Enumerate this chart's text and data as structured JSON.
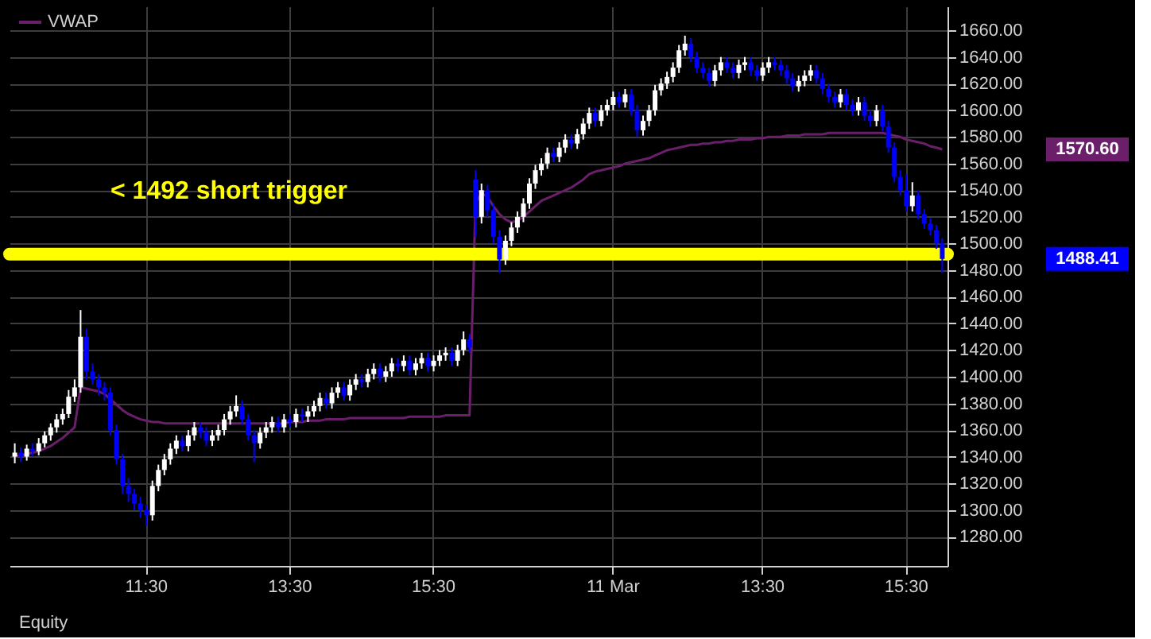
{
  "chart_data": {
    "type": "candlestick",
    "categories": [
      null,
      null,
      null,
      null,
      null,
      null,
      null,
      null,
      null,
      null,
      null,
      null,
      null,
      null,
      null,
      null,
      null,
      null,
      null,
      null,
      null,
      null,
      "11:30",
      null,
      null,
      null,
      null,
      null,
      null,
      null,
      null,
      null,
      null,
      null,
      null,
      null,
      null,
      null,
      null,
      null,
      null,
      null,
      null,
      null,
      null,
      null,
      "13:30",
      null,
      null,
      null,
      null,
      null,
      null,
      null,
      null,
      null,
      null,
      null,
      null,
      null,
      null,
      null,
      null,
      null,
      null,
      null,
      null,
      null,
      null,
      null,
      "15:30",
      null,
      null,
      null,
      null,
      null,
      null,
      null,
      null,
      null,
      null,
      null,
      null,
      null,
      null,
      null,
      null,
      null,
      null,
      null,
      null,
      null,
      null,
      null,
      null,
      null,
      null,
      null,
      null,
      null,
      "11 Mar",
      null,
      null,
      null,
      null,
      null,
      null,
      null,
      null,
      null,
      null,
      null,
      null,
      null,
      null,
      null,
      null,
      null,
      null,
      null,
      null,
      null,
      null,
      null,
      null,
      "13:30",
      null,
      null,
      null,
      null,
      null,
      null,
      null,
      null,
      null,
      null,
      null,
      null,
      null,
      null,
      null,
      null,
      null,
      null,
      null,
      null,
      null,
      null,
      null,
      "15:30",
      null,
      null,
      null,
      null,
      null,
      null
    ],
    "ohlc": [
      [
        1340,
        1350,
        1335,
        1343
      ],
      [
        1343,
        1347,
        1336,
        1340
      ],
      [
        1340,
        1349,
        1337,
        1346
      ],
      [
        1346,
        1350,
        1340,
        1344
      ],
      [
        1344,
        1354,
        1341,
        1350
      ],
      [
        1350,
        1359,
        1347,
        1356
      ],
      [
        1356,
        1365,
        1352,
        1362
      ],
      [
        1362,
        1372,
        1358,
        1368
      ],
      [
        1368,
        1376,
        1364,
        1372
      ],
      [
        1372,
        1390,
        1369,
        1385
      ],
      [
        1385,
        1398,
        1381,
        1392
      ],
      [
        1392,
        1450,
        1388,
        1430
      ],
      [
        1430,
        1436,
        1398,
        1404
      ],
      [
        1404,
        1410,
        1394,
        1398
      ],
      [
        1398,
        1402,
        1386,
        1392
      ],
      [
        1392,
        1396,
        1382,
        1388
      ],
      [
        1388,
        1392,
        1356,
        1360
      ],
      [
        1360,
        1364,
        1334,
        1338
      ],
      [
        1338,
        1342,
        1312,
        1318
      ],
      [
        1318,
        1324,
        1306,
        1312
      ],
      [
        1312,
        1316,
        1300,
        1305
      ],
      [
        1305,
        1310,
        1294,
        1300
      ],
      [
        1300,
        1304,
        1288,
        1296
      ],
      [
        1296,
        1322,
        1292,
        1318
      ],
      [
        1318,
        1334,
        1314,
        1330
      ],
      [
        1330,
        1342,
        1326,
        1338
      ],
      [
        1338,
        1350,
        1334,
        1346
      ],
      [
        1346,
        1356,
        1342,
        1352
      ],
      [
        1352,
        1356,
        1344,
        1348
      ],
      [
        1348,
        1360,
        1344,
        1356
      ],
      [
        1356,
        1366,
        1352,
        1362
      ],
      [
        1362,
        1366,
        1354,
        1358
      ],
      [
        1358,
        1362,
        1348,
        1352
      ],
      [
        1352,
        1360,
        1348,
        1356
      ],
      [
        1356,
        1364,
        1352,
        1360
      ],
      [
        1360,
        1372,
        1356,
        1368
      ],
      [
        1368,
        1378,
        1364,
        1374
      ],
      [
        1374,
        1386,
        1370,
        1378
      ],
      [
        1378,
        1382,
        1364,
        1368
      ],
      [
        1368,
        1372,
        1352,
        1356
      ],
      [
        1356,
        1360,
        1336,
        1350
      ],
      [
        1350,
        1362,
        1346,
        1358
      ],
      [
        1358,
        1366,
        1354,
        1362
      ],
      [
        1362,
        1370,
        1358,
        1366
      ],
      [
        1366,
        1370,
        1358,
        1362
      ],
      [
        1362,
        1372,
        1358,
        1368
      ],
      [
        1368,
        1372,
        1362,
        1366
      ],
      [
        1366,
        1376,
        1362,
        1372
      ],
      [
        1372,
        1376,
        1366,
        1370
      ],
      [
        1370,
        1378,
        1366,
        1374
      ],
      [
        1374,
        1382,
        1370,
        1378
      ],
      [
        1378,
        1388,
        1374,
        1384
      ],
      [
        1384,
        1388,
        1376,
        1380
      ],
      [
        1380,
        1392,
        1376,
        1388
      ],
      [
        1388,
        1396,
        1384,
        1392
      ],
      [
        1392,
        1396,
        1382,
        1386
      ],
      [
        1386,
        1398,
        1382,
        1394
      ],
      [
        1394,
        1402,
        1390,
        1398
      ],
      [
        1398,
        1402,
        1392,
        1396
      ],
      [
        1396,
        1406,
        1392,
        1402
      ],
      [
        1402,
        1410,
        1398,
        1406
      ],
      [
        1406,
        1410,
        1396,
        1400
      ],
      [
        1400,
        1408,
        1396,
        1404
      ],
      [
        1404,
        1414,
        1400,
        1410
      ],
      [
        1410,
        1414,
        1404,
        1408
      ],
      [
        1408,
        1416,
        1404,
        1412
      ],
      [
        1412,
        1416,
        1401,
        1405
      ],
      [
        1405,
        1414,
        1401,
        1410
      ],
      [
        1410,
        1418,
        1406,
        1414
      ],
      [
        1414,
        1418,
        1404,
        1408
      ],
      [
        1408,
        1416,
        1404,
        1412
      ],
      [
        1412,
        1420,
        1408,
        1416
      ],
      [
        1416,
        1422,
        1412,
        1418
      ],
      [
        1418,
        1422,
        1408,
        1412
      ],
      [
        1412,
        1424,
        1408,
        1420
      ],
      [
        1420,
        1434,
        1416,
        1428
      ],
      [
        1428,
        1432,
        1418,
        1422
      ],
      [
        1548,
        1555,
        1505,
        1520
      ],
      [
        1520,
        1545,
        1515,
        1540
      ],
      [
        1540,
        1544,
        1520,
        1525
      ],
      [
        1525,
        1530,
        1500,
        1505
      ],
      [
        1505,
        1510,
        1478,
        1488
      ],
      [
        1488,
        1506,
        1484,
        1502
      ],
      [
        1502,
        1516,
        1498,
        1512
      ],
      [
        1512,
        1524,
        1508,
        1520
      ],
      [
        1520,
        1534,
        1516,
        1530
      ],
      [
        1530,
        1549,
        1526,
        1545
      ],
      [
        1545,
        1559,
        1541,
        1555
      ],
      [
        1555,
        1564,
        1551,
        1560
      ],
      [
        1560,
        1572,
        1556,
        1568
      ],
      [
        1568,
        1572,
        1561,
        1565
      ],
      [
        1565,
        1576,
        1561,
        1572
      ],
      [
        1572,
        1582,
        1568,
        1578
      ],
      [
        1578,
        1582,
        1571,
        1575
      ],
      [
        1575,
        1586,
        1571,
        1582
      ],
      [
        1582,
        1594,
        1578,
        1590
      ],
      [
        1590,
        1602,
        1586,
        1598
      ],
      [
        1598,
        1602,
        1588,
        1592
      ],
      [
        1592,
        1604,
        1588,
        1600
      ],
      [
        1600,
        1608,
        1596,
        1604
      ],
      [
        1604,
        1614,
        1600,
        1610
      ],
      [
        1610,
        1614,
        1602,
        1606
      ],
      [
        1606,
        1616,
        1602,
        1612
      ],
      [
        1612,
        1616,
        1596,
        1600
      ],
      [
        1600,
        1604,
        1580,
        1585
      ],
      [
        1585,
        1596,
        1581,
        1592
      ],
      [
        1592,
        1604,
        1588,
        1600
      ],
      [
        1600,
        1619,
        1596,
        1615
      ],
      [
        1615,
        1624,
        1611,
        1620
      ],
      [
        1620,
        1629,
        1616,
        1625
      ],
      [
        1625,
        1636,
        1621,
        1632
      ],
      [
        1632,
        1649,
        1628,
        1645
      ],
      [
        1645,
        1656,
        1641,
        1650
      ],
      [
        1650,
        1654,
        1636,
        1640
      ],
      [
        1640,
        1644,
        1628,
        1632
      ],
      [
        1632,
        1636,
        1624,
        1628
      ],
      [
        1628,
        1632,
        1618,
        1622
      ],
      [
        1622,
        1634,
        1618,
        1630
      ],
      [
        1630,
        1640,
        1626,
        1636
      ],
      [
        1636,
        1640,
        1628,
        1632
      ],
      [
        1632,
        1636,
        1624,
        1628
      ],
      [
        1628,
        1638,
        1624,
        1634
      ],
      [
        1634,
        1640,
        1630,
        1636
      ],
      [
        1636,
        1640,
        1626,
        1630
      ],
      [
        1630,
        1634,
        1622,
        1626
      ],
      [
        1626,
        1636,
        1622,
        1632
      ],
      [
        1632,
        1640,
        1628,
        1636
      ],
      [
        1636,
        1640,
        1630,
        1634
      ],
      [
        1634,
        1638,
        1626,
        1630
      ],
      [
        1630,
        1634,
        1620,
        1624
      ],
      [
        1624,
        1628,
        1614,
        1618
      ],
      [
        1618,
        1626,
        1614,
        1622
      ],
      [
        1622,
        1630,
        1618,
        1626
      ],
      [
        1626,
        1634,
        1622,
        1630
      ],
      [
        1630,
        1634,
        1620,
        1624
      ],
      [
        1624,
        1628,
        1612,
        1616
      ],
      [
        1616,
        1620,
        1606,
        1610
      ],
      [
        1610,
        1614,
        1602,
        1606
      ],
      [
        1606,
        1616,
        1602,
        1612
      ],
      [
        1612,
        1616,
        1600,
        1604
      ],
      [
        1604,
        1608,
        1596,
        1600
      ],
      [
        1600,
        1610,
        1596,
        1606
      ],
      [
        1606,
        1610,
        1592,
        1596
      ],
      [
        1596,
        1600,
        1588,
        1592
      ],
      [
        1592,
        1604,
        1588,
        1600
      ],
      [
        1600,
        1604,
        1584,
        1588
      ],
      [
        1588,
        1592,
        1568,
        1572
      ],
      [
        1572,
        1576,
        1546,
        1550
      ],
      [
        1550,
        1555,
        1536,
        1540
      ],
      [
        1540,
        1552,
        1524,
        1528
      ],
      [
        1528,
        1546,
        1524,
        1536
      ],
      [
        1536,
        1540,
        1518,
        1522
      ],
      [
        1522,
        1526,
        1511,
        1515
      ],
      [
        1515,
        1519,
        1506,
        1510
      ],
      [
        1510,
        1514,
        1496,
        1500
      ],
      [
        1500,
        1504,
        1478,
        1488.41
      ]
    ],
    "colors": [
      "#ffffff",
      "#0000ff",
      "#ffffff",
      "#0000ff",
      "#ffffff",
      "#ffffff",
      "#ffffff",
      "#ffffff",
      "#ffffff",
      "#ffffff",
      "#ffffff",
      "#ffffff",
      "#0000ff",
      "#0000ff",
      "#0000ff",
      "#0000ff",
      "#0000ff",
      "#0000ff",
      "#0000ff",
      "#0000ff",
      "#0000ff",
      "#0000ff",
      "#0000ff",
      "#ffffff",
      "#ffffff",
      "#ffffff",
      "#ffffff",
      "#ffffff",
      "#0000ff",
      "#ffffff",
      "#ffffff",
      "#0000ff",
      "#0000ff",
      "#ffffff",
      "#ffffff",
      "#ffffff",
      "#ffffff",
      "#ffffff",
      "#0000ff",
      "#0000ff",
      "#0000ff",
      "#ffffff",
      "#ffffff",
      "#ffffff",
      "#0000ff",
      "#ffffff",
      "#0000ff",
      "#ffffff",
      "#0000ff",
      "#ffffff",
      "#ffffff",
      "#ffffff",
      "#0000ff",
      "#ffffff",
      "#ffffff",
      "#0000ff",
      "#ffffff",
      "#ffffff",
      "#0000ff",
      "#ffffff",
      "#ffffff",
      "#0000ff",
      "#ffffff",
      "#ffffff",
      "#0000ff",
      "#ffffff",
      "#0000ff",
      "#ffffff",
      "#ffffff",
      "#0000ff",
      "#ffffff",
      "#ffffff",
      "#ffffff",
      "#0000ff",
      "#ffffff",
      "#ffffff",
      "#0000ff",
      "#0000ff",
      "#ffffff",
      "#0000ff",
      "#0000ff",
      "#0000ff",
      "#ffffff",
      "#ffffff",
      "#ffffff",
      "#ffffff",
      "#ffffff",
      "#ffffff",
      "#ffffff",
      "#ffffff",
      "#0000ff",
      "#ffffff",
      "#ffffff",
      "#0000ff",
      "#ffffff",
      "#ffffff",
      "#ffffff",
      "#0000ff",
      "#ffffff",
      "#ffffff",
      "#ffffff",
      "#0000ff",
      "#ffffff",
      "#0000ff",
      "#0000ff",
      "#ffffff",
      "#ffffff",
      "#ffffff",
      "#ffffff",
      "#ffffff",
      "#ffffff",
      "#ffffff",
      "#ffffff",
      "#0000ff",
      "#0000ff",
      "#0000ff",
      "#0000ff",
      "#ffffff",
      "#ffffff",
      "#0000ff",
      "#0000ff",
      "#ffffff",
      "#ffffff",
      "#0000ff",
      "#0000ff",
      "#ffffff",
      "#ffffff",
      "#0000ff",
      "#0000ff",
      "#0000ff",
      "#0000ff",
      "#ffffff",
      "#ffffff",
      "#ffffff",
      "#0000ff",
      "#0000ff",
      "#0000ff",
      "#0000ff",
      "#ffffff",
      "#0000ff",
      "#0000ff",
      "#ffffff",
      "#0000ff",
      "#0000ff",
      "#ffffff",
      "#0000ff",
      "#0000ff",
      "#0000ff",
      "#0000ff",
      "#0000ff",
      "#ffffff",
      "#0000ff",
      "#0000ff",
      "#0000ff",
      "#0000ff",
      "#0000ff"
    ],
    "series": [
      {
        "name": "VWAP",
        "type": "line",
        "color": "#6b1f6b",
        "values": [
          1340,
          1341,
          1342,
          1343,
          1344,
          1346,
          1348,
          1351,
          1354,
          1358,
          1362,
          1392,
          1391,
          1390,
          1389,
          1387,
          1383,
          1379,
          1375,
          1372,
          1370,
          1368,
          1367,
          1366,
          1366,
          1365,
          1365,
          1365,
          1365,
          1365,
          1365,
          1365,
          1365,
          1365,
          1365,
          1365,
          1365,
          1365,
          1365,
          1365,
          1365,
          1365,
          1365,
          1365,
          1365,
          1365,
          1366,
          1366,
          1366,
          1367,
          1367,
          1367,
          1368,
          1368,
          1368,
          1368,
          1369,
          1369,
          1369,
          1369,
          1369,
          1369,
          1369,
          1369,
          1369,
          1369,
          1370,
          1370,
          1370,
          1370,
          1370,
          1370,
          1371,
          1371,
          1371,
          1371,
          1371,
          1530,
          1538,
          1535,
          1528,
          1522,
          1518,
          1516,
          1517,
          1520,
          1524,
          1528,
          1532,
          1534,
          1536,
          1538,
          1540,
          1542,
          1545,
          1548,
          1552,
          1554,
          1555,
          1556,
          1557,
          1558,
          1560,
          1561,
          1562,
          1563,
          1564,
          1566,
          1568,
          1570,
          1571,
          1572,
          1573,
          1574,
          1574,
          1575,
          1575,
          1576,
          1576,
          1577,
          1577,
          1578,
          1578,
          1578,
          1579,
          1579,
          1580,
          1580,
          1580,
          1581,
          1581,
          1581,
          1582,
          1582,
          1582,
          1582,
          1583,
          1583,
          1583,
          1583,
          1583,
          1583,
          1583,
          1583,
          1583,
          1583,
          1582,
          1581,
          1580,
          1578,
          1577,
          1576,
          1575,
          1573,
          1572,
          1570.6
        ]
      }
    ],
    "ylim": [
      1258,
      1678
    ],
    "yticks": [
      {
        "value": 1280,
        "label": "1280.00"
      },
      {
        "value": 1300,
        "label": "1300.00"
      },
      {
        "value": 1320,
        "label": "1320.00"
      },
      {
        "value": 1340,
        "label": "1340.00"
      },
      {
        "value": 1360,
        "label": "1360.00"
      },
      {
        "value": 1380,
        "label": "1380.00"
      },
      {
        "value": 1400,
        "label": "1400.00"
      },
      {
        "value": 1420,
        "label": "1420.00"
      },
      {
        "value": 1440,
        "label": "1440.00"
      },
      {
        "value": 1460,
        "label": "1460.00"
      },
      {
        "value": 1480,
        "label": "1480.00"
      },
      {
        "value": 1500,
        "label": "1500.00"
      },
      {
        "value": 1520,
        "label": "1520.00"
      },
      {
        "value": 1540,
        "label": "1540.00"
      },
      {
        "value": 1560,
        "label": "1560.00"
      },
      {
        "value": 1580,
        "label": "1580.00"
      },
      {
        "value": 1600,
        "label": "1600.00"
      },
      {
        "value": 1620,
        "label": "1620.00"
      },
      {
        "value": 1640,
        "label": "1640.00"
      },
      {
        "value": 1660,
        "label": "1660.00"
      }
    ],
    "grid": true,
    "legend": "top left",
    "ref_lines": [
      {
        "axis": "y",
        "value": 1492,
        "label": "< 1492 short trigger",
        "color": "#ffff00"
      }
    ],
    "annotations": [
      "Equity",
      "1570.60",
      "1488.41"
    ]
  }
}
